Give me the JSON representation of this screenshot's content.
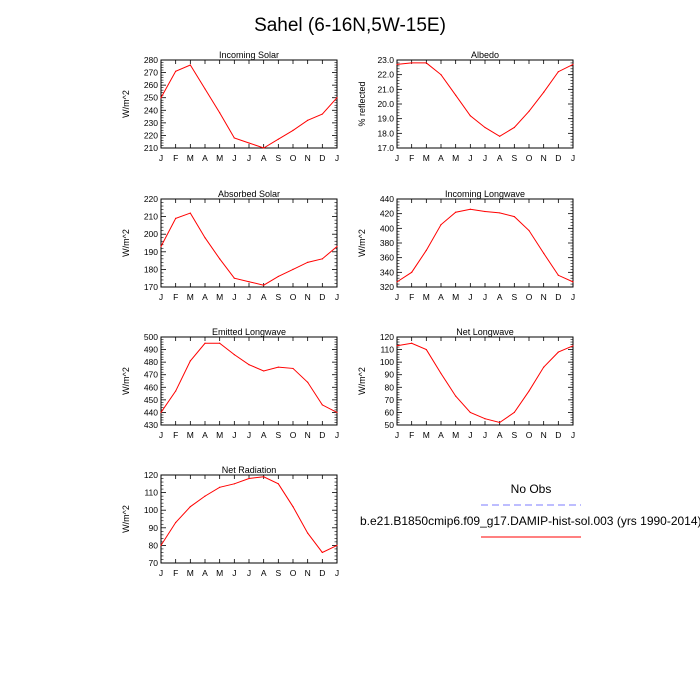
{
  "title": "Sahel (6-16N,5W-15E)",
  "legend": {
    "obs_label": "No Obs",
    "obs_color": "#7b7bff",
    "model_label": "b.e21.B1850cmip6.f09_g17.DAMIP-hist-sol.003 (yrs 1990-2014)",
    "model_color": "#ff0000"
  },
  "chart_data": [
    {
      "type": "line",
      "title": "Incoming Solar",
      "ylabel": "W/m^2",
      "categories": [
        "J",
        "F",
        "M",
        "A",
        "M",
        "J",
        "J",
        "A",
        "S",
        "O",
        "N",
        "D",
        "J"
      ],
      "ylim": [
        210,
        280
      ],
      "yticks": [
        210,
        220,
        230,
        240,
        250,
        260,
        270,
        280
      ],
      "series": [
        {
          "values": [
            250,
            271,
            276,
            257,
            238,
            218,
            214,
            210,
            217,
            224,
            232,
            237,
            250
          ]
        }
      ]
    },
    {
      "type": "line",
      "title": "Albedo",
      "ylabel": "% reflected",
      "categories": [
        "J",
        "F",
        "M",
        "A",
        "M",
        "J",
        "J",
        "A",
        "S",
        "O",
        "N",
        "D",
        "J"
      ],
      "ylim": [
        17.0,
        23.0
      ],
      "yticks": [
        "17.0",
        "18.0",
        "19.0",
        "20.0",
        "21.0",
        "22.0",
        "23.0"
      ],
      "series": [
        {
          "values": [
            22.7,
            22.8,
            22.8,
            22.0,
            20.6,
            19.2,
            18.4,
            17.8,
            18.4,
            19.5,
            20.8,
            22.2,
            22.7
          ]
        }
      ]
    },
    {
      "type": "line",
      "title": "Absorbed Solar",
      "ylabel": "W/m^2",
      "categories": [
        "J",
        "F",
        "M",
        "A",
        "M",
        "J",
        "J",
        "A",
        "S",
        "O",
        "N",
        "D",
        "J"
      ],
      "ylim": [
        170,
        220
      ],
      "yticks": [
        170,
        180,
        190,
        200,
        210,
        220
      ],
      "series": [
        {
          "values": [
            193,
            209,
            212,
            198,
            186,
            175,
            173,
            171,
            176,
            180,
            184,
            186,
            193
          ]
        }
      ]
    },
    {
      "type": "line",
      "title": "Incoming Longwave",
      "ylabel": "W/m^2",
      "categories": [
        "J",
        "F",
        "M",
        "A",
        "M",
        "J",
        "J",
        "A",
        "S",
        "O",
        "N",
        "D",
        "J"
      ],
      "ylim": [
        320,
        440
      ],
      "yticks": [
        320,
        340,
        360,
        380,
        400,
        420,
        440
      ],
      "series": [
        {
          "values": [
            327,
            340,
            370,
            405,
            422,
            426,
            423,
            421,
            416,
            397,
            366,
            336,
            327
          ]
        }
      ]
    },
    {
      "type": "line",
      "title": "Emitted Longwave",
      "ylabel": "W/m^2",
      "categories": [
        "J",
        "F",
        "M",
        "A",
        "M",
        "J",
        "J",
        "A",
        "S",
        "O",
        "N",
        "D",
        "J"
      ],
      "ylim": [
        430,
        500
      ],
      "yticks": [
        430,
        440,
        450,
        460,
        470,
        480,
        490,
        500
      ],
      "series": [
        {
          "values": [
            440,
            457,
            481,
            495,
            495,
            486,
            478,
            473,
            476,
            475,
            464,
            446,
            440
          ]
        }
      ]
    },
    {
      "type": "line",
      "title": "Net Longwave",
      "ylabel": "W/m^2",
      "categories": [
        "J",
        "F",
        "M",
        "A",
        "M",
        "J",
        "J",
        "A",
        "S",
        "O",
        "N",
        "D",
        "J"
      ],
      "ylim": [
        50,
        120
      ],
      "yticks": [
        50,
        60,
        70,
        80,
        90,
        100,
        110,
        120
      ],
      "series": [
        {
          "values": [
            113,
            115,
            110,
            91,
            73,
            60,
            55,
            52,
            60,
            77,
            96,
            108,
            113
          ]
        }
      ]
    },
    {
      "type": "line",
      "title": "Net Radiation",
      "ylabel": "W/m^2",
      "categories": [
        "J",
        "F",
        "M",
        "A",
        "M",
        "J",
        "J",
        "A",
        "S",
        "O",
        "N",
        "D",
        "J"
      ],
      "ylim": [
        70,
        120
      ],
      "yticks": [
        70,
        80,
        90,
        100,
        110,
        120
      ],
      "series": [
        {
          "values": [
            80,
            93,
            102,
            108,
            113,
            115,
            118,
            119,
            115,
            102,
            87,
            76,
            80
          ]
        }
      ]
    }
  ]
}
